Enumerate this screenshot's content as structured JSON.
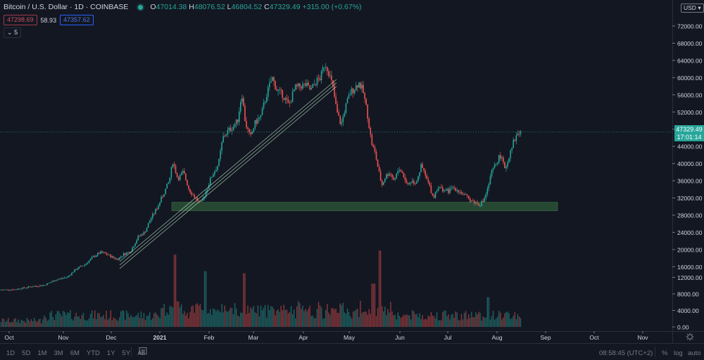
{
  "header": {
    "title": "Bitcoin / U.S. Dollar · 1D · COINBASE",
    "market_status": "open",
    "ohlc": {
      "o_label": "O",
      "o": "47014.38",
      "h_label": "H",
      "h": "48076.52",
      "l_label": "L",
      "l": "46804.52",
      "c_label": "C",
      "c": "47329.49",
      "change": "+315.00 (+0.67%)"
    }
  },
  "indicators": {
    "bid": "47298.69",
    "spread": "58.93",
    "ask": "47357.62",
    "collapse_count": "5"
  },
  "price_axis": {
    "currency": "USD",
    "ticks": [
      "72000.00",
      "68000.00",
      "64000.00",
      "60000.00",
      "56000.00",
      "52000.00",
      "48000.00",
      "44000.00",
      "40000.00",
      "36000.00",
      "32000.00",
      "28000.00",
      "24000.00",
      "20000.00",
      "16000.00"
    ],
    "volume_ticks": [
      "12000.00",
      "8000.00",
      "4000.00",
      "0.00"
    ],
    "last_price": "47329.49",
    "countdown": "17:01:14"
  },
  "time_axis": {
    "labels": [
      "Oct",
      "Nov",
      "Dec",
      "2021",
      "Feb",
      "Mar",
      "Apr",
      "May",
      "Jun",
      "Jul",
      "Aug",
      "Sep",
      "Oct",
      "Nov"
    ]
  },
  "bottom_bar": {
    "ranges": [
      "1D",
      "5D",
      "1M",
      "3M",
      "6M",
      "YTD",
      "1Y",
      "5Y",
      "All"
    ],
    "clock": "08:58:45 (UTC+2)",
    "percent": "%",
    "log": "log",
    "auto": "auto"
  },
  "colors": {
    "background": "#131722",
    "up": "#26a69a",
    "down": "#ef5350",
    "grid_text": "#d1d4dc",
    "support_zone": "#2e5a3a",
    "trendline": "#b8e0c0"
  },
  "chart_data": {
    "type": "candlestick",
    "title": "Bitcoin / U.S. Dollar · 1D · COINBASE",
    "xlabel": "",
    "ylabel": "USD",
    "ylim": [
      0,
      74000
    ],
    "x_tick_labels": [
      "Oct",
      "Nov",
      "Dec",
      "2021",
      "Feb",
      "Mar",
      "Apr",
      "May",
      "Jun",
      "Jul",
      "Aug",
      "Sep",
      "Oct",
      "Nov"
    ],
    "y_tick_labels": [
      "72000.00",
      "68000.00",
      "64000.00",
      "60000.00",
      "56000.00",
      "52000.00",
      "48000.00",
      "44000.00",
      "40000.00",
      "36000.00",
      "32000.00",
      "28000.00",
      "24000.00",
      "20000.00",
      "16000.00"
    ],
    "grid": false,
    "approx_monthly_close": {
      "categories": [
        "2020-10",
        "2020-11",
        "2020-12",
        "2021-01",
        "2021-02",
        "2021-03",
        "2021-04",
        "2021-05",
        "2021-06",
        "2021-07",
        "2021-08 (partial)"
      ],
      "values": [
        13800,
        19700,
        29000,
        33100,
        45200,
        58800,
        57700,
        37300,
        35000,
        41500,
        47329
      ]
    },
    "key_levels": {
      "all_time_high_approx": 64800,
      "support_zone": [
        29000,
        31000
      ],
      "last_close": 47329.49
    },
    "annotations": [
      {
        "type": "rising_channel_lines",
        "count": 3,
        "from": "Dec 2020 ~15000",
        "to": "Apr 2021 ~58000"
      },
      {
        "type": "support_rectangle",
        "range": [
          29000,
          31000
        ],
        "from": "Jan 2021",
        "to": "Aug 2021"
      }
    ],
    "volume_max_approx": 18500
  }
}
